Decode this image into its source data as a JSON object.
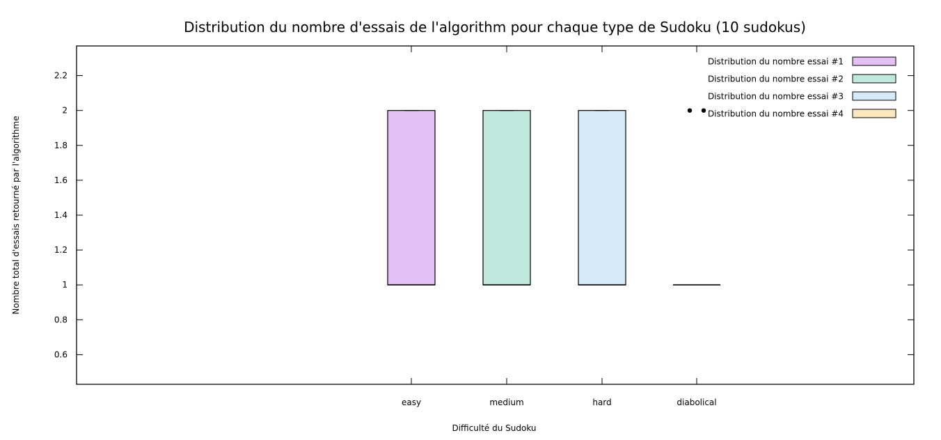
{
  "chart_data": {
    "type": "boxplot",
    "title": "Distribution du nombre d'essais de l'algorithm pour chaque type de Sudoku (10 sudokus)",
    "xlabel": "Difficulté du Sudoku",
    "ylabel": "Nombre total d'essais retourné par l'algorithme",
    "categories": [
      "easy",
      "medium",
      "hard",
      "diabolical"
    ],
    "ylim": [
      0.43,
      2.37
    ],
    "yticks": [
      0.6,
      0.8,
      1,
      1.2,
      1.4,
      1.6,
      1.8,
      2,
      2.2
    ],
    "ytick_labels": [
      "0.6",
      "0.8",
      "1",
      "1.2",
      "1.4",
      "1.6",
      "1.8",
      "2",
      "2.2"
    ],
    "grid": false,
    "legend_position": "top-right",
    "series": [
      {
        "name": "Distribution du nombre essai #1",
        "category": "easy",
        "color": "#e4bff4",
        "min": 1,
        "q1": 1,
        "median": 1,
        "q3": 2,
        "max": 2,
        "outliers": []
      },
      {
        "name": "Distribution du nombre essai #2",
        "category": "medium",
        "color": "#c0e8dc",
        "min": 1,
        "q1": 1,
        "median": 1,
        "q3": 2,
        "max": 2,
        "outliers": []
      },
      {
        "name": "Distribution du nombre essai #3",
        "category": "hard",
        "color": "#d5eaf8",
        "min": 1,
        "q1": 1,
        "median": 1,
        "q3": 2,
        "max": 2,
        "outliers": []
      },
      {
        "name": "Distribution du nombre essai #4",
        "category": "diabolical",
        "color": "#fde7bf",
        "min": 1,
        "q1": 1,
        "median": 1,
        "q3": 1,
        "max": 1,
        "outliers": [
          2,
          2
        ]
      }
    ]
  }
}
